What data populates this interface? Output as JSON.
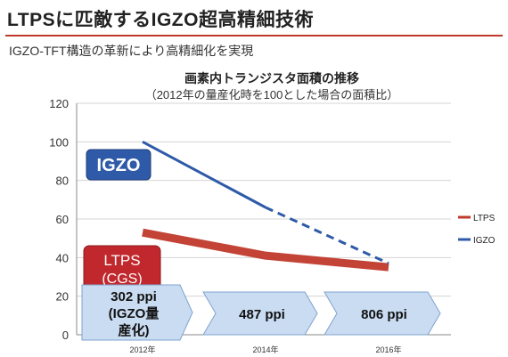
{
  "header": {
    "title": "LTPSに匹敵するIGZO超高精細技術",
    "subtitle": "IGZO-TFT構造の革新により高精細化を実現"
  },
  "colors": {
    "title_rule": "#c0392b",
    "ltps": "#c0392b",
    "igzo": "#2e5aa8",
    "arrow_fill": "#c9dcf2",
    "igzo_box": "#2e5aa8",
    "ltps_box": "#c0282d"
  },
  "chart_data": {
    "type": "line",
    "title": "画素内トランジスタ面積の推移",
    "subtitle": "（2012年の量産化時を100とした場合の面積比）",
    "xlabel": "",
    "ylabel": "",
    "categories": [
      "2012年",
      "2014年",
      "2016年"
    ],
    "ylim": [
      0,
      120
    ],
    "yticks": [
      0,
      20,
      40,
      60,
      80,
      100,
      120
    ],
    "grid": true,
    "legend_position": "right",
    "series": [
      {
        "name": "LTPS",
        "points": [
          [
            0,
            53
          ],
          [
            1,
            41
          ],
          [
            2,
            35
          ]
        ],
        "style": "band",
        "color": "#c0392b"
      },
      {
        "name": "IGZO",
        "points": [
          [
            0,
            100
          ],
          [
            1,
            66
          ],
          [
            2,
            37
          ]
        ],
        "dashed_from": 1,
        "color": "#2e5aa8"
      }
    ],
    "labels": {
      "igzo_box": "IGZO",
      "ltps_box_line1": "LTPS",
      "ltps_box_line2": "(CGS)"
    },
    "ppi_arrows": [
      {
        "lines": [
          "302 ppi",
          "(IGZO量",
          "産化)"
        ]
      },
      {
        "lines": [
          "487 ppi"
        ]
      },
      {
        "lines": [
          "806 ppi"
        ]
      }
    ]
  }
}
